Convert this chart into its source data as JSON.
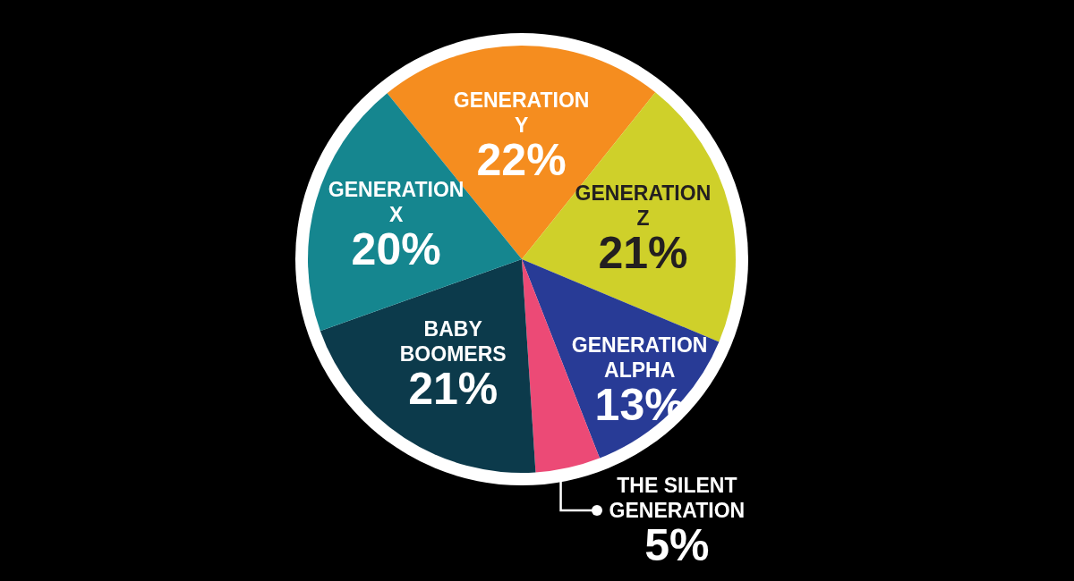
{
  "chart_data": {
    "type": "pie",
    "categories": [
      "GENERATION Y",
      "GENERATION Z",
      "GENERATION ALPHA",
      "THE SILENT GENERATION",
      "BABY BOOMERS",
      "GENERATION X"
    ],
    "values": [
      22,
      21,
      13,
      5,
      21,
      20
    ],
    "colors": [
      "#f58d1f",
      "#cfd02a",
      "#283b96",
      "#ec4a76",
      "#0c3a4b",
      "#15868f"
    ],
    "value_labels": [
      "22%",
      "21%",
      "13%",
      "5%",
      "21%",
      "20%"
    ]
  }
}
